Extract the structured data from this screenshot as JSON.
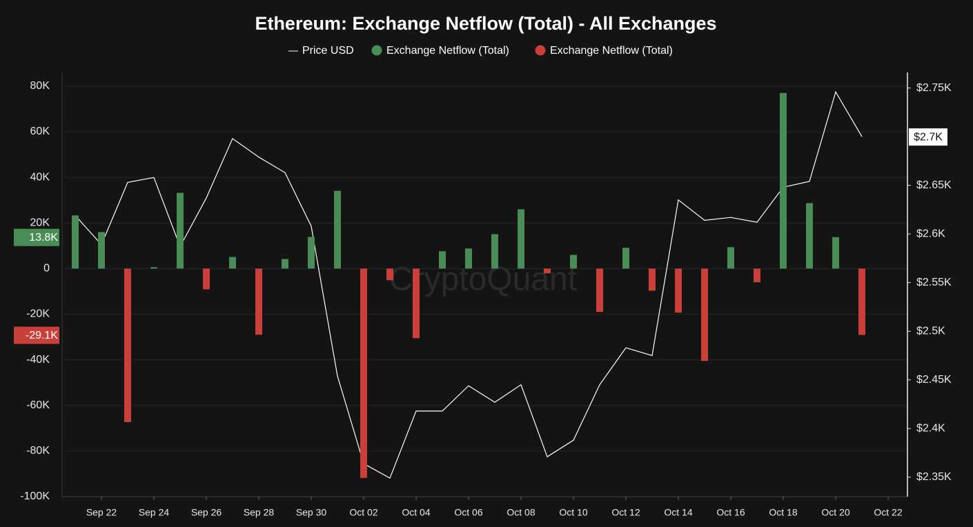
{
  "chart_data": {
    "type": "bar",
    "title": "Ethereum: Exchange Netflow (Total) - All Exchanges",
    "watermark": "CryptoQuant",
    "categories": [
      null,
      "Sep 22",
      null,
      "Sep 24",
      null,
      "Sep 26",
      null,
      "Sep 28",
      null,
      "Sep 30",
      null,
      "Oct 02",
      null,
      "Oct 04",
      null,
      "Oct 06",
      null,
      "Oct 08",
      null,
      "Oct 10",
      null,
      "Oct 12",
      null,
      "Oct 14",
      null,
      "Oct 16",
      null,
      "Oct 18",
      null,
      "Oct 20",
      null,
      "Oct 22"
    ],
    "series": [
      {
        "name": "Price USD",
        "type": "line",
        "axis": "y2",
        "color": "#ffffff",
        "values": [
          2619,
          2589,
          2653,
          2658,
          2587,
          2637,
          2698,
          2679,
          2663,
          2608,
          2454,
          2364,
          2349,
          2418,
          2418,
          2444,
          2427,
          2445,
          2371,
          2388,
          2445,
          2483,
          2475,
          2635,
          2614,
          2617,
          2612,
          2648,
          2654,
          2746,
          2700,
          null
        ],
        "value_labels": [
          null,
          null,
          null,
          null,
          null,
          null,
          null,
          null,
          null,
          null,
          null,
          null,
          null,
          null,
          null,
          null,
          null,
          null,
          null,
          null,
          null,
          null,
          null,
          null,
          null,
          null,
          null,
          null,
          null,
          null,
          "$2.7K",
          null
        ]
      },
      {
        "name": "Exchange Netflow (Total)",
        "type": "bar",
        "color": "#4a8c55",
        "values": [
          23300,
          16000,
          null,
          600,
          33200,
          null,
          5100,
          null,
          4200,
          13900,
          34100,
          null,
          null,
          null,
          7600,
          8800,
          15100,
          26000,
          null,
          6000,
          null,
          9100,
          null,
          null,
          null,
          9400,
          null,
          77000,
          28700,
          13800,
          null,
          null
        ],
        "value_labels": [
          null,
          null,
          null,
          null,
          null,
          null,
          null,
          null,
          null,
          null,
          null,
          null,
          null,
          null,
          null,
          null,
          null,
          null,
          null,
          null,
          null,
          null,
          null,
          null,
          null,
          null,
          null,
          null,
          null,
          "13.8K",
          null,
          null
        ]
      },
      {
        "name": "Exchange Netflow (Total)",
        "type": "bar",
        "color": "#c9403a",
        "values": [
          null,
          null,
          -67300,
          null,
          null,
          -9100,
          null,
          -29000,
          null,
          null,
          null,
          -91800,
          -5100,
          -30500,
          null,
          null,
          null,
          null,
          -2100,
          null,
          -19000,
          null,
          -9700,
          -19300,
          -40500,
          null,
          -6000,
          null,
          null,
          null,
          -29100,
          null
        ],
        "value_labels": [
          null,
          null,
          null,
          null,
          null,
          null,
          null,
          null,
          null,
          null,
          null,
          null,
          null,
          null,
          null,
          null,
          null,
          null,
          null,
          null,
          null,
          null,
          null,
          null,
          null,
          null,
          null,
          null,
          null,
          null,
          "-29.1K",
          null
        ]
      }
    ],
    "ylim": [
      -100000,
      86000
    ],
    "yticks": [
      {
        "value": 80000,
        "label": "80K"
      },
      {
        "value": 60000,
        "label": "60K"
      },
      {
        "value": 40000,
        "label": "40K"
      },
      {
        "value": 20000,
        "label": "20K"
      },
      0,
      {
        "value": -20000,
        "label": "-20K"
      },
      {
        "value": -40000,
        "label": "-40K"
      },
      {
        "value": -60000,
        "label": "-60K"
      },
      {
        "value": -80000,
        "label": "-80K"
      },
      {
        "value": -100000,
        "label": "-100K"
      }
    ],
    "y2lim": [
      2330,
      2766
    ],
    "y2ticks": [
      {
        "value": 2750,
        "label": "$2.75K"
      },
      {
        "value": 2650,
        "label": "$2.65K"
      },
      {
        "value": 2600,
        "label": "$2.6K"
      },
      {
        "value": 2550,
        "label": "$2.55K"
      },
      {
        "value": 2500,
        "label": "$2.5K"
      },
      {
        "value": 2450,
        "label": "$2.45K"
      },
      {
        "value": 2400,
        "label": "$2.4K"
      },
      {
        "value": 2350,
        "label": "$2.35K"
      }
    ],
    "grid": true
  }
}
